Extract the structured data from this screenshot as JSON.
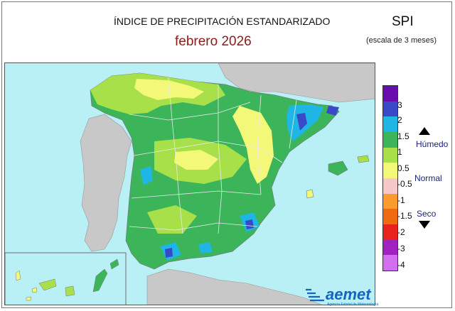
{
  "header": {
    "title": "ÍNDICE DE PRECIPITACIÓN ESTANDARIZADO",
    "period": "febrero  2026",
    "index_name": "SPI",
    "scale_note": "(escala de 3 meses)"
  },
  "legend": {
    "ticks": [
      "3",
      "2",
      "1.5",
      "1",
      "0.5",
      "-0.5",
      "-1",
      "-1.5",
      "-2",
      "-3",
      "-4"
    ],
    "categories": {
      "wet": "Húmedo",
      "normal": "Normal",
      "dry": "Seco"
    },
    "colors": [
      "#6a0dad",
      "#3949c8",
      "#1fb6e6",
      "#3cb55a",
      "#a8e04a",
      "#f4f878",
      "#f6c8c8",
      "#fb9b2e",
      "#f06a10",
      "#e8221e",
      "#a020c0",
      "#d070f0"
    ]
  },
  "map": {
    "sea_color": "#b8f0f5",
    "land_outside_color": "#c8c8c8"
  },
  "logo": {
    "name": "aemet",
    "agency": "Agencia Estatal de Meteorología"
  }
}
